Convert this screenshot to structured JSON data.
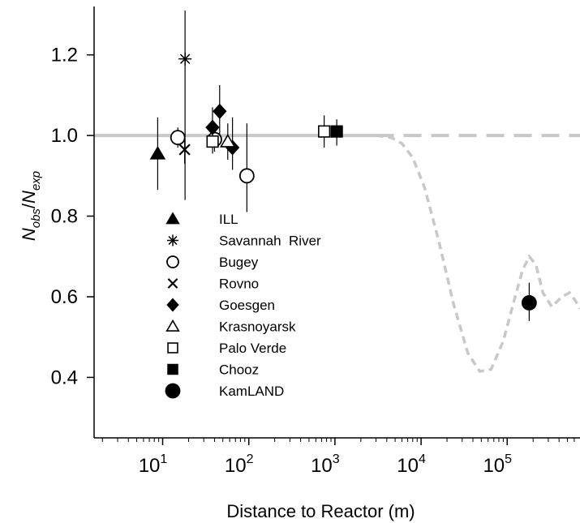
{
  "chart_data": {
    "type": "scatter",
    "title": "",
    "xlabel": "Distance to Reactor (m)",
    "ylabel": {
      "base": "N",
      "num_sub": "obs",
      "den_sub": "exp"
    },
    "xscale": "log",
    "xlim": [
      1.6,
      700000
    ],
    "ylim": [
      0.25,
      1.32
    ],
    "xticks": [
      {
        "value": 10,
        "base": "10",
        "exp": "1"
      },
      {
        "value": 100,
        "base": "10",
        "exp": "2"
      },
      {
        "value": 1000,
        "base": "10",
        "exp": "3"
      },
      {
        "value": 10000,
        "base": "10",
        "exp": "4"
      },
      {
        "value": 100000,
        "base": "10",
        "exp": "5"
      }
    ],
    "yticks": [
      {
        "value": 0.4,
        "label": "0.4"
      },
      {
        "value": 0.6,
        "label": "0.6"
      },
      {
        "value": 0.8,
        "label": "0.8"
      },
      {
        "value": 1.0,
        "label": "1.0"
      },
      {
        "value": 1.2,
        "label": "1.2"
      }
    ],
    "grid": false,
    "legend_position": "lower-left",
    "reference_line": {
      "y": 1.0,
      "color": "#c8c8c8"
    },
    "oscillation_curve": {
      "style": "dashed",
      "color": "#c8c8c8",
      "points": [
        [
          3000,
          1.0
        ],
        [
          4500,
          0.995
        ],
        [
          6000,
          0.98
        ],
        [
          8000,
          0.945
        ],
        [
          11000,
          0.87
        ],
        [
          16000,
          0.74
        ],
        [
          24000,
          0.58
        ],
        [
          35000,
          0.46
        ],
        [
          48000,
          0.415
        ],
        [
          65000,
          0.42
        ],
        [
          90000,
          0.49
        ],
        [
          120000,
          0.59
        ],
        [
          150000,
          0.665
        ],
        [
          180000,
          0.7
        ],
        [
          215000,
          0.68
        ],
        [
          260000,
          0.61
        ],
        [
          330000,
          0.575
        ],
        [
          430000,
          0.6
        ],
        [
          530000,
          0.61
        ],
        [
          620000,
          0.59
        ],
        [
          700000,
          0.57
        ]
      ]
    },
    "series": [
      {
        "name": "ILL",
        "marker": "triangle-filled",
        "points": [
          {
            "x": 8.76,
            "y": 0.955,
            "err": [
              0.865,
              1.045
            ]
          }
        ]
      },
      {
        "name": "Savannah  River",
        "marker": "asterisk",
        "points": [
          {
            "x": 18.2,
            "y": 1.19,
            "err": [
              0.84,
              1.31
            ]
          }
        ]
      },
      {
        "name": "Bugey",
        "marker": "circle-open",
        "points": [
          {
            "x": 15,
            "y": 0.995,
            "err": [
              0.97,
              1.02
            ]
          },
          {
            "x": 40,
            "y": 0.99,
            "err": [
              0.96,
              1.02
            ]
          },
          {
            "x": 95,
            "y": 0.9,
            "err": [
              0.81,
              1.03
            ]
          }
        ]
      },
      {
        "name": "Rovno",
        "marker": "x",
        "points": [
          {
            "x": 18,
            "y": 0.965,
            "err": [
              0.93,
              1.0
            ]
          }
        ]
      },
      {
        "name": "Goesgen",
        "marker": "diamond-filled",
        "points": [
          {
            "x": 37.9,
            "y": 1.02,
            "err": [
              0.97,
              1.07
            ]
          },
          {
            "x": 45.9,
            "y": 1.06,
            "err": [
              1.0,
              1.125
            ]
          },
          {
            "x": 64.7,
            "y": 0.97,
            "err": [
              0.915,
              1.045
            ]
          }
        ]
      },
      {
        "name": "Krasnoyarsk",
        "marker": "triangle-open",
        "points": [
          {
            "x": 57,
            "y": 0.985,
            "err": [
              0.94,
              1.03
            ]
          }
        ]
      },
      {
        "name": "Palo Verde",
        "marker": "square-open",
        "points": [
          {
            "x": 38,
            "y": 0.985,
            "err": [
              0.955,
              1.015
            ]
          },
          {
            "x": 750,
            "y": 1.01,
            "err": [
              0.97,
              1.05
            ]
          }
        ]
      },
      {
        "name": "Chooz",
        "marker": "square-filled",
        "points": [
          {
            "x": 1050,
            "y": 1.01,
            "err": [
              0.975,
              1.04
            ]
          }
        ]
      },
      {
        "name": "KamLAND",
        "marker": "circle-filled",
        "points": [
          {
            "x": 180000,
            "y": 0.585,
            "err": [
              0.54,
              0.635
            ]
          }
        ]
      }
    ]
  }
}
